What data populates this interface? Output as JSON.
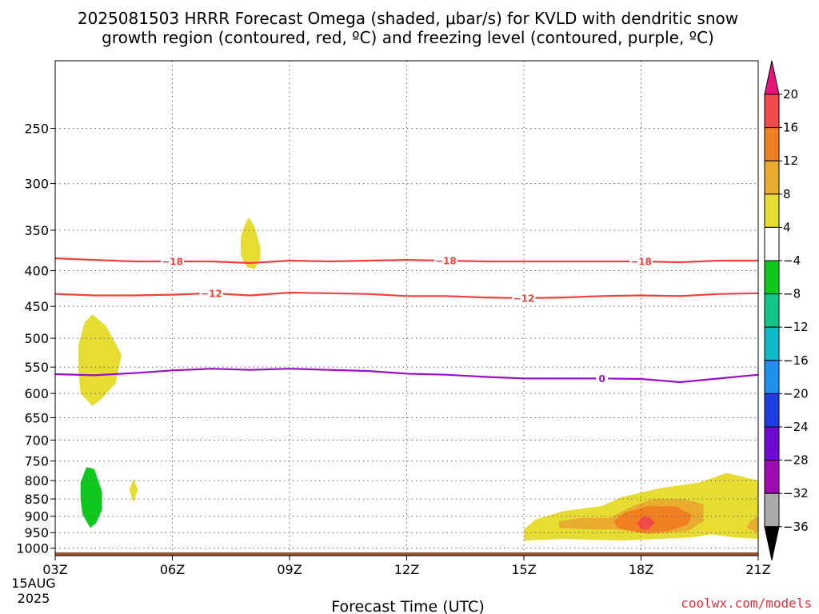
{
  "title_line1": "2025081503 HRRR Forecast Omega (shaded, μbar/s) for KVLD with dendritic snow",
  "title_line2": "growth region (contoured, red, ºC) and freezing level (contoured, purple, ºC)",
  "xlabel": "Forecast Time (UTC)",
  "credit": "coolwx.com/models",
  "date_label": [
    "15AUG",
    "2025"
  ],
  "colors": {
    "dgz_contour": "#f0403c",
    "freezing_contour": "#9b0fc8",
    "ground": "#a0522d",
    "grid": "#666666"
  },
  "chart_data": {
    "type": "heatmap",
    "x_ticks": [
      {
        "hour": 3,
        "label": "03Z"
      },
      {
        "hour": 6,
        "label": "06Z"
      },
      {
        "hour": 9,
        "label": "09Z"
      },
      {
        "hour": 12,
        "label": "12Z"
      },
      {
        "hour": 15,
        "label": "15Z"
      },
      {
        "hour": 18,
        "label": "18Z"
      },
      {
        "hour": 21,
        "label": "21Z"
      }
    ],
    "xlim": [
      3,
      21
    ],
    "y_ticks": [
      250,
      300,
      350,
      400,
      450,
      500,
      550,
      600,
      650,
      700,
      750,
      800,
      850,
      900,
      950,
      1000
    ],
    "ylim_hPa": [
      200,
      1025
    ],
    "y_scale": "log-pressure",
    "ground_level_hPa": 1014,
    "colorbar": {
      "labels": [
        "20",
        "16",
        "12",
        "8",
        "4",
        "−4",
        "−8",
        "−12",
        "−16",
        "−20",
        "−24",
        "−28",
        "−32",
        "−36"
      ],
      "bins": [
        {
          "range": [
            20,
            24
          ],
          "color": "#e8137a"
        },
        {
          "range": [
            16,
            20
          ],
          "color": "#f2494b"
        },
        {
          "range": [
            12,
            16
          ],
          "color": "#f07f22"
        },
        {
          "range": [
            8,
            12
          ],
          "color": "#e9ac2f"
        },
        {
          "range": [
            4,
            8
          ],
          "color": "#e6dc32"
        },
        {
          "range": [
            -4,
            4
          ],
          "color": "#ffffff"
        },
        {
          "range": [
            -8,
            -4
          ],
          "color": "#0fc81e"
        },
        {
          "range": [
            -12,
            -8
          ],
          "color": "#11c687"
        },
        {
          "range": [
            -16,
            -12
          ],
          "color": "#10b9c8"
        },
        {
          "range": [
            -20,
            -16
          ],
          "color": "#1e90f0"
        },
        {
          "range": [
            -24,
            -20
          ],
          "color": "#1e3ce6"
        },
        {
          "range": [
            -28,
            -24
          ],
          "color": "#6e0ad2"
        },
        {
          "range": [
            -32,
            -28
          ],
          "color": "#a00ab4"
        },
        {
          "range": [
            -36,
            -32
          ],
          "color": "#aaaaaa"
        },
        {
          "range": [
            -40,
            -36
          ],
          "color": "#000000"
        }
      ]
    },
    "contours": [
      {
        "name": "-18",
        "color": "#f0403c",
        "points": [
          [
            3,
            384
          ],
          [
            4,
            386
          ],
          [
            5,
            388
          ],
          [
            6,
            388
          ],
          [
            7,
            388
          ],
          [
            8,
            390
          ],
          [
            9,
            387
          ],
          [
            10,
            388
          ],
          [
            11,
            387
          ],
          [
            12,
            386
          ],
          [
            13,
            387
          ],
          [
            14,
            388
          ],
          [
            15,
            388
          ],
          [
            16,
            388
          ],
          [
            17,
            388
          ],
          [
            18,
            388
          ],
          [
            19,
            389
          ],
          [
            20,
            387
          ],
          [
            21,
            387
          ]
        ],
        "label_positions": [
          6,
          13,
          18
        ]
      },
      {
        "name": "-12",
        "color": "#f0403c",
        "points": [
          [
            3,
            432
          ],
          [
            4,
            434
          ],
          [
            5,
            434
          ],
          [
            6,
            433
          ],
          [
            7,
            431
          ],
          [
            8,
            434
          ],
          [
            9,
            430
          ],
          [
            10,
            431
          ],
          [
            11,
            432
          ],
          [
            12,
            435
          ],
          [
            13,
            435
          ],
          [
            14,
            437
          ],
          [
            15,
            438
          ],
          [
            16,
            437
          ],
          [
            17,
            435
          ],
          [
            18,
            434
          ],
          [
            19,
            435
          ],
          [
            20,
            432
          ],
          [
            21,
            431
          ]
        ],
        "label_positions": [
          7,
          15
        ]
      },
      {
        "name": "0",
        "color": "#9b0fc8",
        "points": [
          [
            3,
            563
          ],
          [
            4,
            565
          ],
          [
            5,
            561
          ],
          [
            6,
            556
          ],
          [
            7,
            553
          ],
          [
            8,
            555
          ],
          [
            9,
            553
          ],
          [
            10,
            555
          ],
          [
            11,
            557
          ],
          [
            12,
            562
          ],
          [
            13,
            564
          ],
          [
            14,
            568
          ],
          [
            15,
            571
          ],
          [
            16,
            571
          ],
          [
            17,
            571
          ],
          [
            18,
            572
          ],
          [
            19,
            578
          ],
          [
            20,
            571
          ],
          [
            21,
            564
          ]
        ],
        "label_positions": [
          17
        ]
      }
    ],
    "shaded_regions": [
      {
        "level": "4 to 8",
        "color": "#e6dc32",
        "points": [
          [
            3.6,
            510
          ],
          [
            3.75,
            475
          ],
          [
            3.95,
            462
          ],
          [
            4.3,
            480
          ],
          [
            4.7,
            528
          ],
          [
            4.55,
            580
          ],
          [
            4.2,
            610
          ],
          [
            3.95,
            625
          ],
          [
            3.65,
            600
          ],
          [
            3.6,
            560
          ]
        ]
      },
      {
        "level": "4 to 8",
        "color": "#e6dc32",
        "points": [
          [
            7.8,
            350
          ],
          [
            7.95,
            335
          ],
          [
            8.1,
            345
          ],
          [
            8.25,
            370
          ],
          [
            8.25,
            385
          ],
          [
            8.1,
            398
          ],
          [
            7.9,
            395
          ],
          [
            7.75,
            380
          ],
          [
            7.75,
            360
          ]
        ]
      },
      {
        "level": "4 to 8",
        "color": "#e6dc32",
        "points": [
          [
            5.0,
            795
          ],
          [
            5.12,
            825
          ],
          [
            5.0,
            860
          ],
          [
            4.9,
            825
          ]
        ]
      },
      {
        "level": "-8 to -4",
        "color": "#0fc81e",
        "points": [
          [
            3.65,
            805
          ],
          [
            3.8,
            765
          ],
          [
            4.0,
            770
          ],
          [
            4.2,
            830
          ],
          [
            4.2,
            880
          ],
          [
            4.05,
            920
          ],
          [
            3.9,
            935
          ],
          [
            3.7,
            895
          ],
          [
            3.65,
            850
          ]
        ]
      },
      {
        "level": "4 to 8",
        "color": "#e6dc32",
        "points": [
          [
            15,
            940
          ],
          [
            15.3,
            910
          ],
          [
            16,
            885
          ],
          [
            17,
            870
          ],
          [
            17.5,
            845
          ],
          [
            18.5,
            820
          ],
          [
            19.5,
            805
          ],
          [
            20.2,
            780
          ],
          [
            21,
            800
          ],
          [
            21,
            970
          ],
          [
            20.4,
            965
          ],
          [
            19.8,
            955
          ],
          [
            19.3,
            965
          ],
          [
            17.5,
            975
          ],
          [
            16,
            970
          ],
          [
            15,
            975
          ]
        ]
      },
      {
        "level": "8 to 12",
        "color": "#e9ac2f",
        "points": [
          [
            15.9,
            915
          ],
          [
            16.5,
            905
          ],
          [
            17.2,
            905
          ],
          [
            17.8,
            870
          ],
          [
            18.3,
            850
          ],
          [
            19.1,
            850
          ],
          [
            19.6,
            865
          ],
          [
            19.6,
            915
          ],
          [
            19.2,
            945
          ],
          [
            18.2,
            955
          ],
          [
            17.4,
            940
          ],
          [
            16.7,
            940
          ],
          [
            15.9,
            935
          ]
        ]
      },
      {
        "level": "8 to 12",
        "color": "#e9ac2f",
        "points": [
          [
            21,
            900
          ],
          [
            20.8,
            915
          ],
          [
            20.7,
            935
          ],
          [
            21,
            950
          ]
        ]
      },
      {
        "level": "12 to 16",
        "color": "#f07f22",
        "points": [
          [
            17.3,
            915
          ],
          [
            17.6,
            888
          ],
          [
            18.2,
            870
          ],
          [
            18.9,
            872
          ],
          [
            19.3,
            895
          ],
          [
            19.2,
            925
          ],
          [
            18.7,
            945
          ],
          [
            18.0,
            950
          ],
          [
            17.4,
            935
          ]
        ]
      },
      {
        "level": "16 to 20",
        "color": "#f2494b",
        "points": [
          [
            17.9,
            920
          ],
          [
            18.05,
            900
          ],
          [
            18.25,
            905
          ],
          [
            18.35,
            920
          ],
          [
            18.2,
            940
          ],
          [
            18.0,
            940
          ]
        ]
      }
    ]
  }
}
